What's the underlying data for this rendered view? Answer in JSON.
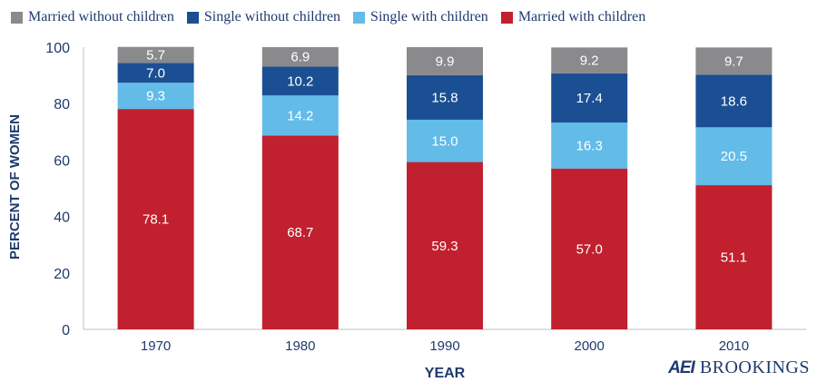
{
  "legend": [
    {
      "label": "Married without children",
      "color": "#8a8a8c"
    },
    {
      "label": "Single without children",
      "color": "#1b4f93"
    },
    {
      "label": "Single with children",
      "color": "#63bbe8"
    },
    {
      "label": "Married with children",
      "color": "#c1202e"
    }
  ],
  "brand": {
    "aei": "AEI",
    "brookings": "BROOKINGS"
  },
  "chart_data": {
    "type": "bar",
    "stacked": true,
    "categories": [
      "1970",
      "1980",
      "1990",
      "2000",
      "2010"
    ],
    "series": [
      {
        "name": "Married with children",
        "color": "#c1202e",
        "values": [
          78.1,
          68.7,
          59.3,
          57.0,
          51.1
        ],
        "labels": [
          "78.1",
          "68.7",
          "59.3",
          "57.0",
          "51.1"
        ]
      },
      {
        "name": "Single with children",
        "color": "#63bbe8",
        "values": [
          9.3,
          14.2,
          15.0,
          16.3,
          20.5
        ],
        "labels": [
          "9.3",
          "14.2",
          "15.0",
          "16.3",
          "20.5"
        ]
      },
      {
        "name": "Single without children",
        "color": "#1b4f93",
        "values": [
          7.0,
          10.2,
          15.8,
          17.4,
          18.6
        ],
        "labels": [
          "7.0",
          "10.2",
          "15.8",
          "17.4",
          "18.6"
        ]
      },
      {
        "name": "Married without children",
        "color": "#8a8a8c",
        "values": [
          5.7,
          6.9,
          9.9,
          9.2,
          9.7
        ],
        "labels": [
          "5.7",
          "6.9",
          "9.9",
          "9.2",
          "9.7"
        ]
      }
    ],
    "xlabel": "YEAR",
    "ylabel": "PERCENT OF WOMEN",
    "ylim": [
      0,
      100
    ],
    "yticks": [
      "0",
      "20",
      "40",
      "60",
      "80",
      "100"
    ],
    "grid": false,
    "legend_position": "top"
  }
}
